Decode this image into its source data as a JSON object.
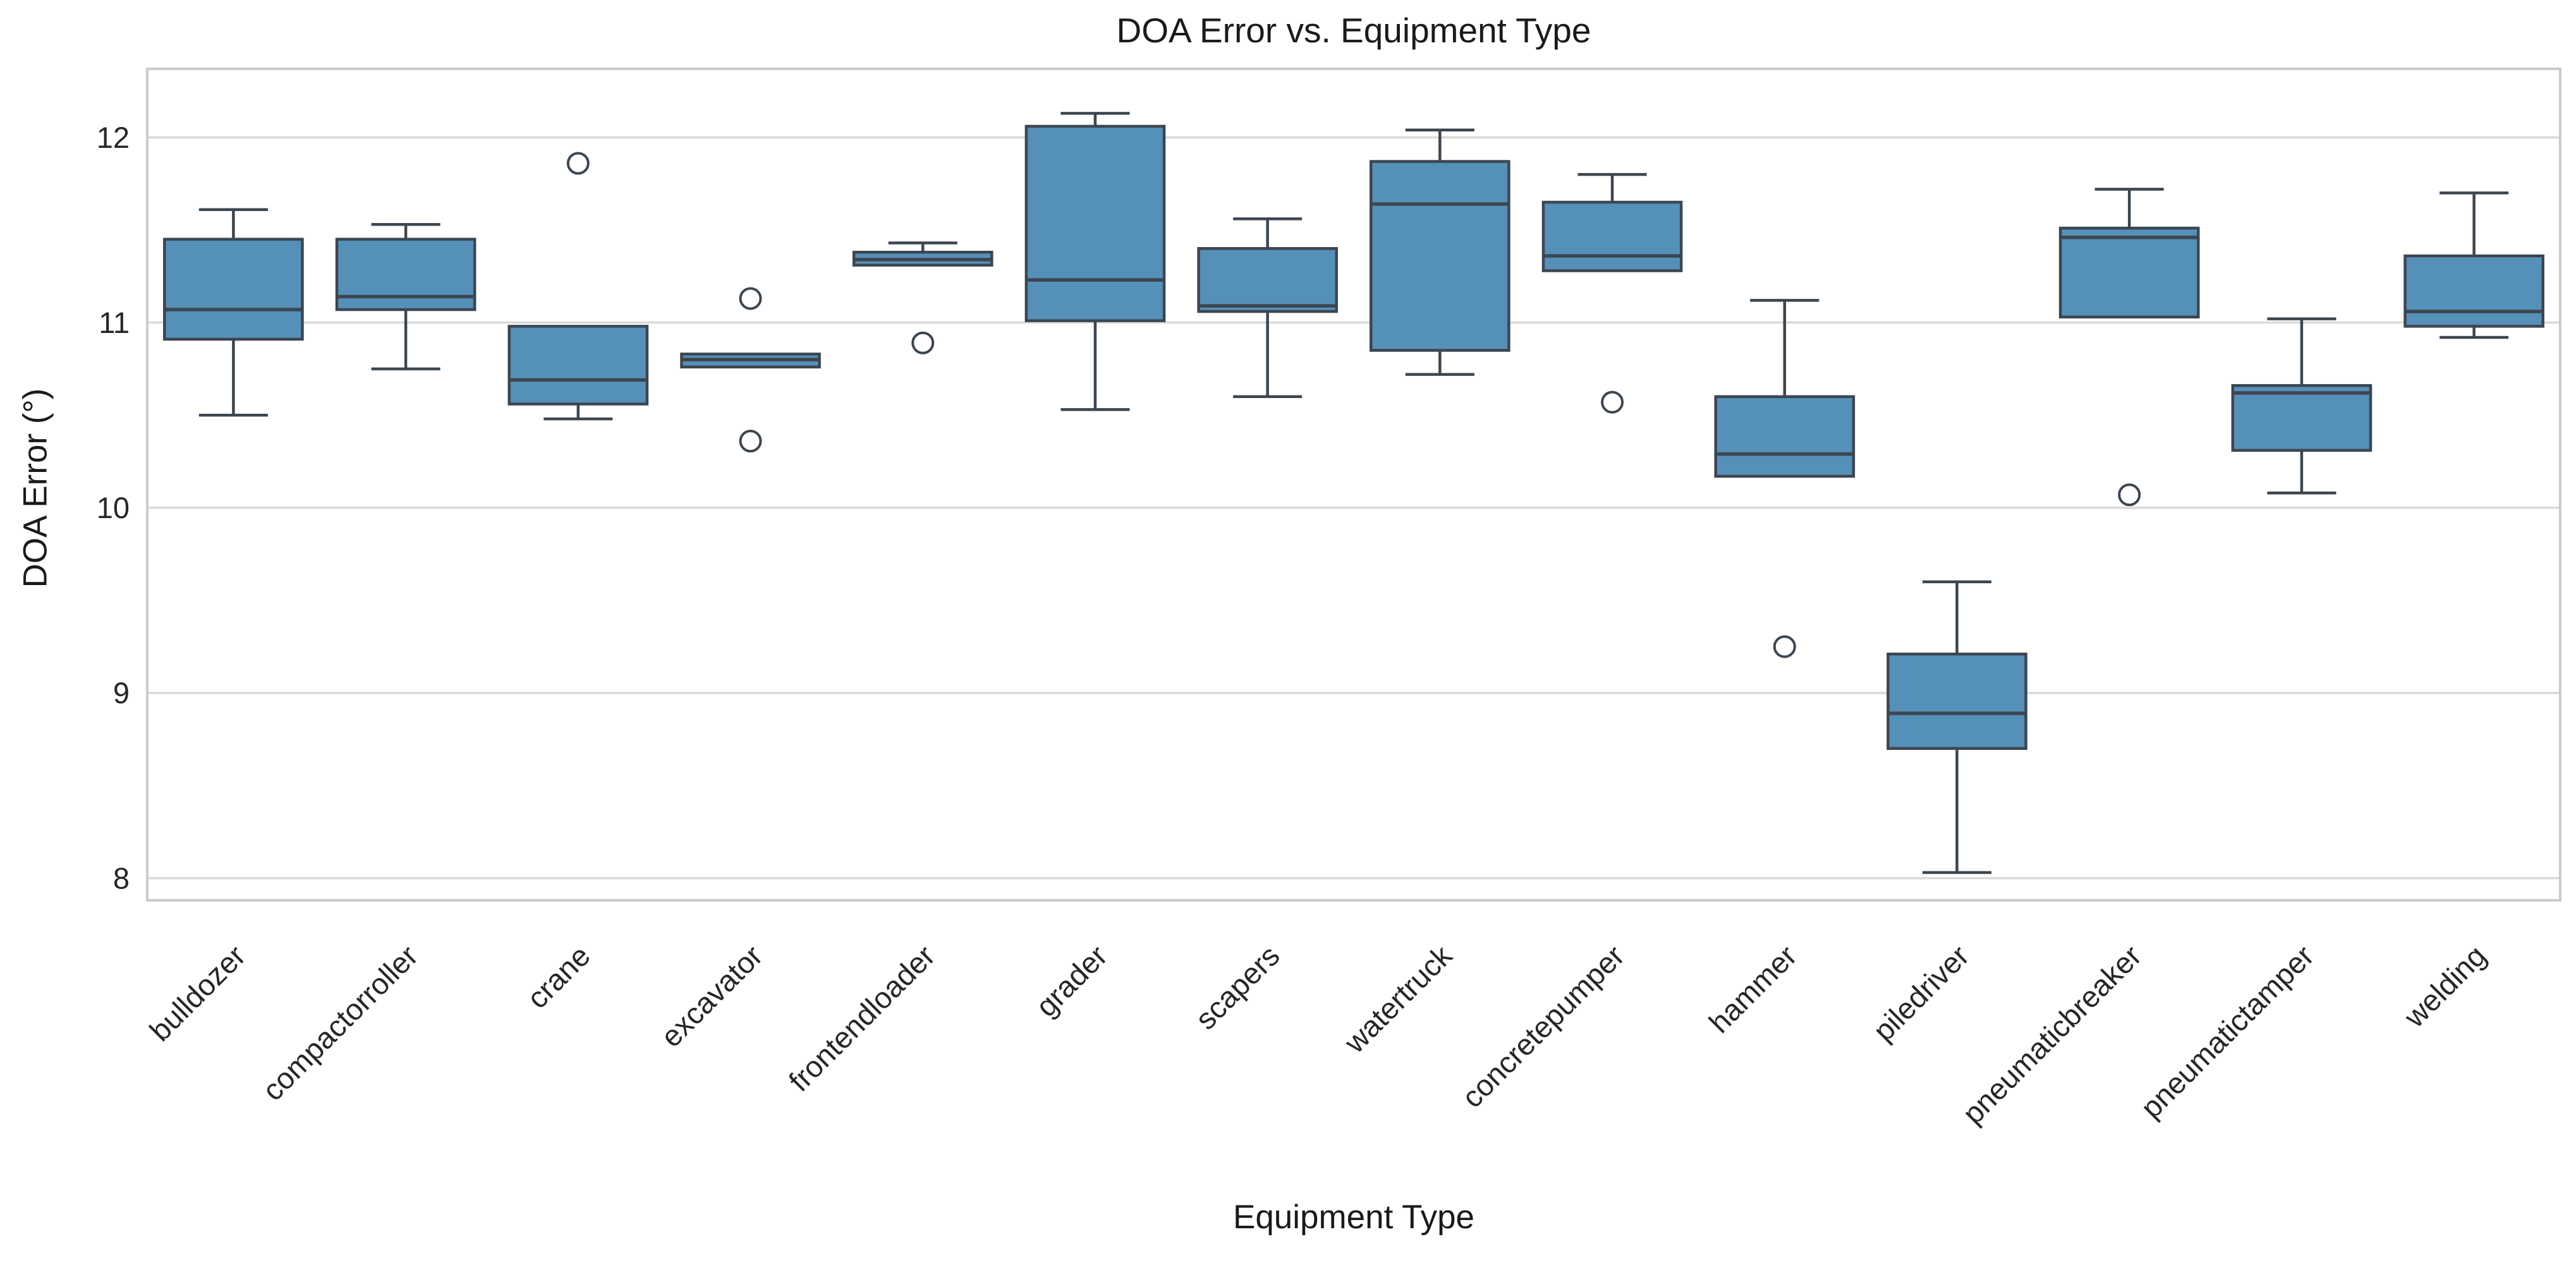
{
  "figure": {
    "title": "DOA Error vs. Equipment Type",
    "xlabel": "Equipment Type",
    "ylabel": "DOA Error (°)"
  },
  "chart_data": {
    "type": "box",
    "title": "DOA Error vs. Equipment Type",
    "xlabel": "Equipment Type",
    "ylabel": "DOA Error (°)",
    "legend": null,
    "grid": "horizontal",
    "ylim": [
      7.88,
      12.37
    ],
    "yticks": [
      8,
      9,
      10,
      11,
      12
    ],
    "categories": [
      "bulldozer",
      "compactorroller",
      "crane",
      "excavator",
      "frontendloader",
      "grader",
      "scapers",
      "watertruck",
      "concretepumper",
      "hammer",
      "piledriver",
      "pneumaticbreaker",
      "pneumatictamper",
      "welding"
    ],
    "boxes": [
      {
        "label": "bulldozer",
        "whislo": 10.5,
        "q1": 10.91,
        "med": 11.07,
        "q3": 11.45,
        "whishi": 11.61,
        "fliers": []
      },
      {
        "label": "compactorroller",
        "whislo": 10.75,
        "q1": 11.07,
        "med": 11.14,
        "q3": 11.45,
        "whishi": 11.53,
        "fliers": []
      },
      {
        "label": "crane",
        "whislo": 10.48,
        "q1": 10.56,
        "med": 10.69,
        "q3": 10.98,
        "whishi": 10.98,
        "fliers": [
          11.86
        ]
      },
      {
        "label": "excavator",
        "whislo": 10.76,
        "q1": 10.76,
        "med": 10.8,
        "q3": 10.83,
        "whishi": 10.83,
        "fliers": [
          11.13,
          10.36
        ]
      },
      {
        "label": "frontendloader",
        "whislo": 11.31,
        "q1": 11.31,
        "med": 11.34,
        "q3": 11.38,
        "whishi": 11.43,
        "fliers": [
          10.89
        ]
      },
      {
        "label": "grader",
        "whislo": 10.53,
        "q1": 11.01,
        "med": 11.23,
        "q3": 12.06,
        "whishi": 12.13,
        "fliers": []
      },
      {
        "label": "scapers",
        "whislo": 10.6,
        "q1": 11.06,
        "med": 11.09,
        "q3": 11.4,
        "whishi": 11.56,
        "fliers": []
      },
      {
        "label": "watertruck",
        "whislo": 10.72,
        "q1": 10.85,
        "med": 11.64,
        "q3": 11.87,
        "whishi": 12.04,
        "fliers": []
      },
      {
        "label": "concretepumper",
        "whislo": 11.28,
        "q1": 11.28,
        "med": 11.36,
        "q3": 11.65,
        "whishi": 11.8,
        "fliers": [
          10.57
        ]
      },
      {
        "label": "hammer",
        "whislo": 10.17,
        "q1": 10.17,
        "med": 10.29,
        "q3": 10.6,
        "whishi": 11.12,
        "fliers": [
          9.25
        ]
      },
      {
        "label": "piledriver",
        "whislo": 8.03,
        "q1": 8.7,
        "med": 8.89,
        "q3": 9.21,
        "whishi": 9.6,
        "fliers": []
      },
      {
        "label": "pneumaticbreaker",
        "whislo": 11.03,
        "q1": 11.03,
        "med": 11.46,
        "q3": 11.51,
        "whishi": 11.72,
        "fliers": [
          10.07
        ]
      },
      {
        "label": "pneumatictamper",
        "whislo": 10.08,
        "q1": 10.31,
        "med": 10.62,
        "q3": 10.66,
        "whishi": 11.02,
        "fliers": []
      },
      {
        "label": "welding",
        "whislo": 10.92,
        "q1": 10.98,
        "med": 11.06,
        "q3": 11.36,
        "whishi": 11.7,
        "fliers": []
      }
    ],
    "style": {
      "box_fill": "#5590B8",
      "line_color": "#3C4650",
      "grid_color": "#D9D9D9",
      "border_color": "#C8CCCE",
      "text_color": "#262626",
      "tick_font_px": 47,
      "label_font_px": 53,
      "title_font_px": 55
    }
  }
}
